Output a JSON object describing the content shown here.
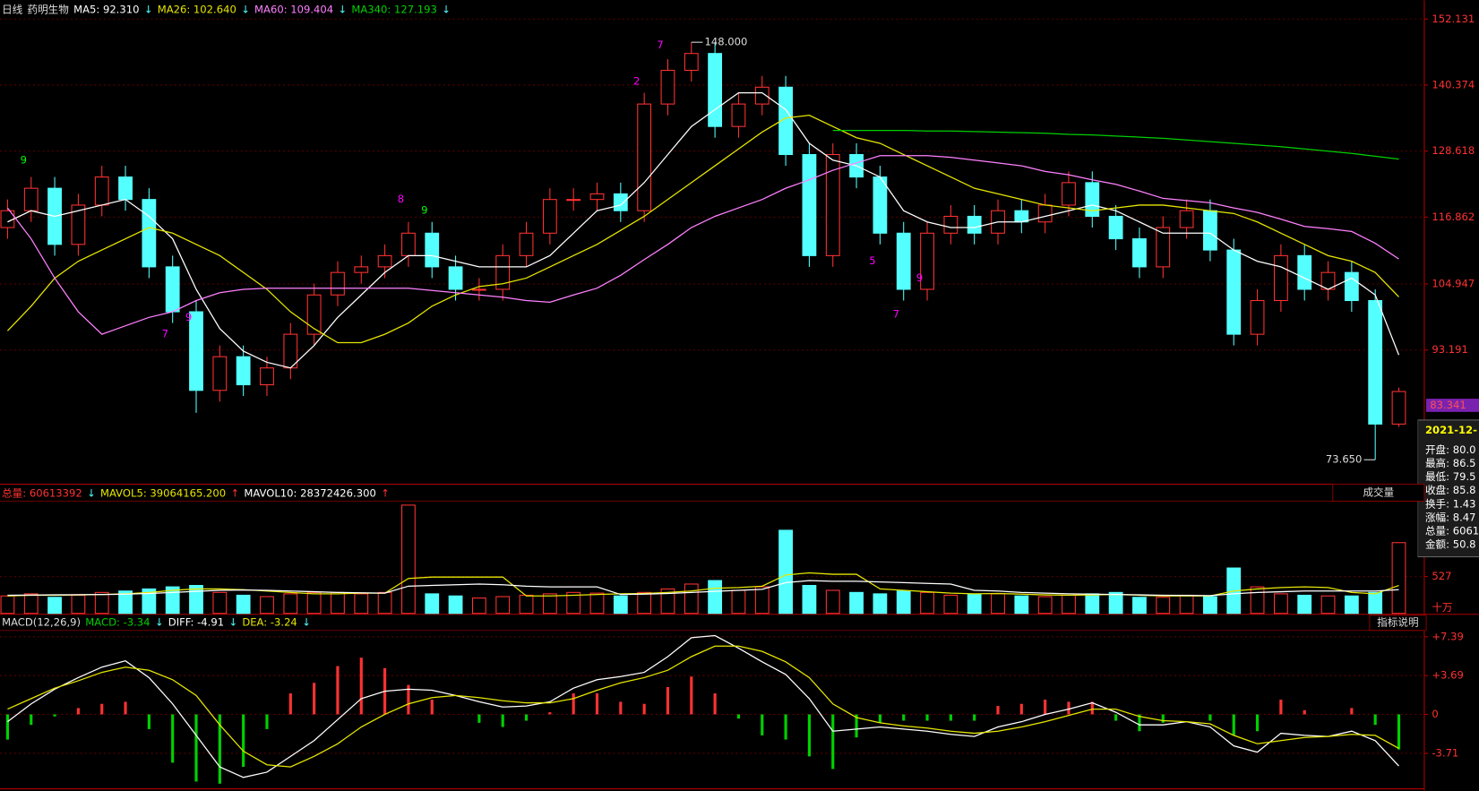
{
  "chart_data": [
    {
      "type": "candlestick",
      "period": "日线",
      "title": "药明生物",
      "open": [
        115,
        118,
        122,
        112,
        119,
        124,
        120,
        108,
        100,
        86,
        92,
        87,
        90,
        96,
        103,
        107,
        108,
        110,
        114,
        108,
        104,
        104,
        110,
        114,
        120,
        120,
        121,
        118,
        137,
        143,
        146,
        133,
        137,
        140,
        128,
        110,
        128,
        124,
        114,
        104,
        114,
        117,
        114,
        118,
        116,
        119,
        123,
        117,
        113,
        108,
        115,
        118,
        111,
        96,
        102,
        110,
        104,
        107,
        102,
        80
      ],
      "high": [
        120,
        124,
        124,
        121,
        126,
        126,
        122,
        110,
        102,
        94,
        94,
        92,
        98,
        105,
        109,
        110,
        112,
        116,
        116,
        110,
        106,
        112,
        116,
        122,
        122,
        123,
        123,
        139,
        145,
        148,
        148,
        139,
        142,
        142,
        130,
        130,
        130,
        126,
        116,
        116,
        119,
        119,
        120,
        120,
        121,
        125,
        125,
        119,
        115,
        117,
        120,
        120,
        113,
        104,
        112,
        112,
        109,
        109,
        104,
        86.5
      ],
      "low": [
        113,
        116,
        110,
        110,
        117,
        118,
        106,
        98,
        82,
        84,
        85,
        85,
        88,
        94,
        101,
        105,
        106,
        108,
        106,
        102,
        102,
        102,
        108,
        112,
        118,
        118,
        116,
        116,
        135,
        141,
        131,
        131,
        135,
        126,
        108,
        108,
        122,
        112,
        102,
        102,
        112,
        112,
        112,
        114,
        114,
        117,
        115,
        111,
        106,
        106,
        113,
        109,
        94,
        94,
        100,
        102,
        102,
        100,
        73.65,
        79.5
      ],
      "close": [
        118,
        122,
        112,
        119,
        124,
        120,
        108,
        100,
        86,
        92,
        87,
        90,
        96,
        103,
        107,
        108,
        110,
        114,
        108,
        104,
        104,
        110,
        114,
        120,
        120,
        121,
        118,
        137,
        143,
        146,
        133,
        137,
        140,
        128,
        110,
        128,
        124,
        114,
        104,
        114,
        117,
        114,
        118,
        116,
        119,
        123,
        117,
        113,
        108,
        115,
        118,
        111,
        96,
        102,
        110,
        104,
        107,
        102,
        80,
        85.8
      ],
      "up_color": "#ff3232",
      "down_color": "#54ffff",
      "ylim": [
        69.3,
        154.8
      ],
      "yticks": [
        152.131,
        140.374,
        128.618,
        116.862,
        104.947,
        93.191
      ],
      "grid": true,
      "series": [
        {
          "name": "MA5",
          "legend_text": "MA5: 92.310",
          "trend": "↓",
          "trend_color": "#54ffff",
          "color": "#ffffff",
          "values": [
            116,
            118,
            117,
            118,
            119,
            120,
            117,
            113,
            104,
            97,
            93,
            91,
            90,
            94,
            99,
            103,
            107,
            110,
            110,
            109,
            108,
            108,
            108,
            110,
            114,
            118,
            119,
            123,
            128,
            133,
            136,
            139,
            139,
            136,
            130,
            127,
            126,
            124,
            118,
            116,
            115,
            115,
            116,
            116,
            117,
            118,
            119,
            118,
            116,
            114,
            114,
            114,
            111,
            109,
            108,
            106,
            104,
            106,
            103,
            92.31
          ]
        },
        {
          "name": "MA26",
          "legend_text": "MA26: 102.640",
          "trend": "↓",
          "trend_color": "#54ffff",
          "color": "#e6e600",
          "values": [
            96.6,
            101,
            106,
            109,
            111,
            113,
            115,
            114,
            112,
            110,
            107,
            104,
            100,
            97,
            94.5,
            94.5,
            96,
            98,
            101,
            103,
            104.5,
            105,
            106,
            108,
            110,
            112,
            114.5,
            117,
            120,
            123,
            126,
            129,
            132,
            134.5,
            135,
            133,
            131,
            130,
            128,
            126,
            124,
            122,
            121,
            120,
            119,
            118.5,
            118,
            118.5,
            119,
            119,
            118.5,
            118,
            117.5,
            116,
            114,
            112,
            110,
            109,
            107,
            102.64
          ]
        },
        {
          "name": "MA60",
          "legend_text": "MA60: 109.404",
          "trend": "↓",
          "trend_color": "#54ffff",
          "color": "#ff80ff",
          "values": [
            118.5,
            113,
            106,
            100,
            96,
            97.5,
            99,
            100,
            102,
            103.4,
            104,
            104.2,
            104.2,
            104.2,
            104.2,
            104.2,
            104.2,
            104.2,
            103.8,
            103.4,
            103,
            102.6,
            102,
            101.7,
            103,
            104.2,
            106.5,
            109.3,
            112,
            115,
            117,
            118.5,
            120,
            122,
            123.5,
            125.2,
            126.5,
            127.8,
            127.8,
            127.8,
            127.5,
            127,
            126.5,
            126,
            125,
            124.4,
            123.5,
            122.7,
            121.5,
            120.2,
            119.8,
            119.4,
            118.5,
            117.7,
            116.5,
            115.2,
            114.8,
            114.3,
            112.2,
            109.404
          ]
        },
        {
          "name": "MA340",
          "legend_text": "MA340: 127.193",
          "trend": "↓",
          "trend_color": "#54ffff",
          "color": "#00d000",
          "values": [
            null,
            null,
            null,
            null,
            null,
            null,
            null,
            null,
            null,
            null,
            null,
            null,
            null,
            null,
            null,
            null,
            null,
            null,
            null,
            null,
            null,
            null,
            null,
            null,
            null,
            null,
            null,
            null,
            null,
            null,
            null,
            null,
            null,
            null,
            null,
            132.3,
            132.3,
            132.3,
            132.3,
            132.2,
            132.2,
            132.1,
            132.0,
            131.9,
            131.8,
            131.6,
            131.5,
            131.3,
            131.1,
            130.9,
            130.6,
            130.3,
            130.0,
            129.7,
            129.4,
            129.0,
            128.6,
            128.2,
            127.7,
            127.193
          ]
        }
      ],
      "annotations": [
        {
          "index": 29,
          "value": 148,
          "label": "148.000"
        },
        {
          "index": 58,
          "value": 73.65,
          "label": "73.650"
        }
      ],
      "last_price": {
        "value": 83.341,
        "label": "83.341"
      },
      "td_counts": [
        {
          "index": 1,
          "value": 127,
          "label": "9",
          "color": "#00ff00"
        },
        {
          "index": 7,
          "value": 96,
          "label": "7",
          "color": "#ff00ff"
        },
        {
          "index": 8,
          "value": 99,
          "label": "9",
          "color": "#ff00ff"
        },
        {
          "index": 17,
          "value": 120,
          "label": "8",
          "color": "#ff00ff"
        },
        {
          "index": 18,
          "value": 118,
          "label": "9",
          "color": "#00ff00"
        },
        {
          "index": 27,
          "value": 141,
          "label": "2",
          "color": "#ff00ff"
        },
        {
          "index": 28,
          "value": 147.5,
          "label": "7",
          "color": "#ff00ff"
        },
        {
          "index": 37,
          "value": 109,
          "label": "5",
          "color": "#ff00ff"
        },
        {
          "index": 38,
          "value": 99.5,
          "label": "7",
          "color": "#ff00ff"
        },
        {
          "index": 39,
          "value": 106,
          "label": "9",
          "color": "#ff00ff"
        }
      ],
      "tooltip": {
        "date": "2021-12-",
        "rows": [
          "开盘: 80.0",
          "最高: 86.5",
          "最低: 79.5",
          "收盘: 85.8",
          "换手: 1.43",
          "涨幅: 8.47",
          "总量: 6061",
          "金额: 50.8"
        ]
      }
    },
    {
      "type": "volume",
      "title": "总量: 60613392",
      "trend": "↓",
      "trend_color": "#54ffff",
      "button": "成交量",
      "unit": "十万",
      "values": [
        250,
        280,
        230,
        260,
        300,
        320,
        350,
        380,
        400,
        300,
        260,
        240,
        280,
        300,
        300,
        280,
        300,
        1550,
        280,
        250,
        220,
        240,
        260,
        280,
        300,
        290,
        250,
        300,
        350,
        420,
        470,
        330,
        380,
        1190,
        400,
        330,
        300,
        280,
        320,
        300,
        260,
        270,
        280,
        250,
        240,
        260,
        280,
        300,
        230,
        230,
        260,
        240,
        650,
        380,
        280,
        260,
        250,
        250,
        300,
        1013
      ],
      "ylim": [
        0,
        1580
      ],
      "yticks": [
        527
      ],
      "grid": true,
      "series": [
        {
          "name": "MAVOL5",
          "legend_text": "MAVOL5: 39064165.200",
          "trend": "↑",
          "trend_color": "#ff3232",
          "color": "#e6e600",
          "values": [
            250,
            260,
            260,
            265,
            270,
            280,
            300,
            330,
            350,
            350,
            340,
            320,
            300,
            280,
            280,
            290,
            290,
            500,
            520,
            520,
            520,
            520,
            250,
            250,
            260,
            270,
            280,
            285,
            300,
            320,
            360,
            370,
            390,
            550,
            580,
            560,
            560,
            350,
            330,
            310,
            290,
            280,
            285,
            275,
            265,
            260,
            265,
            270,
            260,
            250,
            250,
            250,
            320,
            350,
            370,
            380,
            370,
            300,
            280,
            400
          ]
        },
        {
          "name": "MAVOL10",
          "legend_text": "MAVOL10: 28372426.300",
          "trend": "↑",
          "trend_color": "#ff3232",
          "color": "#ffffff",
          "values": [
            260,
            262,
            265,
            268,
            270,
            275,
            285,
            300,
            315,
            330,
            335,
            330,
            320,
            310,
            300,
            295,
            290,
            390,
            400,
            410,
            420,
            410,
            390,
            380,
            380,
            380,
            270,
            275,
            285,
            300,
            315,
            330,
            345,
            440,
            470,
            460,
            460,
            450,
            440,
            430,
            420,
            330,
            320,
            300,
            290,
            280,
            275,
            270,
            265,
            260,
            258,
            255,
            280,
            300,
            310,
            320,
            320,
            320,
            320,
            340
          ]
        }
      ]
    },
    {
      "type": "macd",
      "title": "MACD(12,26,9)",
      "legend_text": "MACD: -3.34",
      "trend": "↓",
      "trend_color": "#54ffff",
      "button": "指标说明",
      "pos_color": "#ff3232",
      "neg_color": "#00d000",
      "values": [
        -2.4,
        -1,
        -0.2,
        0.6,
        1,
        1.2,
        -1.4,
        -4.6,
        -6.4,
        -6.6,
        -5,
        -1.4,
        2,
        3,
        4.6,
        5.4,
        4.4,
        2.8,
        1.4,
        0,
        -0.8,
        -1.2,
        -0.6,
        0.2,
        2,
        2,
        1.2,
        1,
        2.6,
        3.6,
        2,
        -0.4,
        -2,
        -2.4,
        -4,
        -5.2,
        -2.2,
        -0.8,
        -0.6,
        -0.6,
        -0.6,
        -0.6,
        0.8,
        1,
        1.4,
        1.2,
        1.2,
        -0.6,
        -1.6,
        -0.8,
        0,
        -0.6,
        -2,
        -1.6,
        1.4,
        0.4,
        0,
        0.6,
        -1,
        -3.34
      ],
      "ylim": [
        -7,
        8
      ],
      "yticks": [
        {
          "value": 7.39,
          "label": "+7.39"
        },
        {
          "value": 3.69,
          "label": "+3.69"
        },
        0,
        -3.71
      ],
      "grid": true,
      "series": [
        {
          "name": "DIFF",
          "legend_text": "DIFF: -4.91",
          "trend": "↓",
          "trend_color": "#54ffff",
          "color": "#ffffff",
          "values": [
            -0.7,
            1,
            2.4,
            3.5,
            4.5,
            5.1,
            3.5,
            1,
            -2,
            -5,
            -6,
            -5.5,
            -4,
            -2.5,
            -0.5,
            1.5,
            2.2,
            2.4,
            2.3,
            1.8,
            1.2,
            0.7,
            0.8,
            1.2,
            2.5,
            3.3,
            3.6,
            4,
            5.5,
            7.3,
            7.5,
            6.3,
            5,
            3.8,
            1.5,
            -1.6,
            -1.4,
            -1.2,
            -1.4,
            -1.6,
            -1.9,
            -2.1,
            -1.2,
            -0.7,
            0,
            0.5,
            1.1,
            0.2,
            -1,
            -1,
            -0.7,
            -1.2,
            -3,
            -3.6,
            -1.8,
            -2,
            -2.1,
            -1.6,
            -2.5,
            -4.91
          ]
        },
        {
          "name": "DEA",
          "legend_text": "DEA: -3.24",
          "trend": "↓",
          "trend_color": "#54ffff",
          "color": "#e6e600",
          "values": [
            0.5,
            1.5,
            2.5,
            3.2,
            4,
            4.5,
            4.2,
            3.3,
            1.8,
            -1,
            -3.5,
            -4.8,
            -5,
            -4,
            -2.8,
            -1.2,
            0,
            1,
            1.6,
            1.8,
            1.6,
            1.3,
            1.1,
            1.1,
            1.5,
            2.3,
            3,
            3.5,
            4.2,
            5.5,
            6.5,
            6.5,
            6,
            5,
            3.5,
            1,
            -0.3,
            -0.8,
            -1.1,
            -1.3,
            -1.6,
            -1.8,
            -1.6,
            -1.2,
            -0.7,
            -0.1,
            0.5,
            0.5,
            -0.2,
            -0.6,
            -0.7,
            -0.9,
            -2,
            -2.8,
            -2.5,
            -2.2,
            -2.1,
            -1.9,
            -2,
            -3.24
          ]
        }
      ]
    }
  ]
}
